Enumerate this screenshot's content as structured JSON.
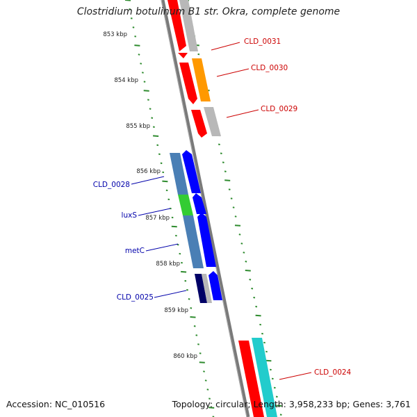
{
  "title": "Clostridium botulinum B1 str. Okra, complete genome",
  "footer": {
    "accession": "Accession: NC_010516",
    "info": "Topology: circular; Length: 3,958,233 bp; Genes: 3,761"
  },
  "ruler": [
    {
      "label": "853 kbp"
    },
    {
      "label": "854 kbp"
    },
    {
      "label": "855 kbp"
    },
    {
      "label": "856 kbp"
    },
    {
      "label": "857 kbp"
    },
    {
      "label": "858 kbp"
    },
    {
      "label": "859 kbp"
    },
    {
      "label": "860 kbp"
    }
  ],
  "gene_labels": [
    {
      "text": "CLD_0031",
      "color": "#cc0000"
    },
    {
      "text": "CLD_0030",
      "color": "#cc0000"
    },
    {
      "text": "CLD_0029",
      "color": "#cc0000"
    },
    {
      "text": "CLD_0028",
      "color": "#0000aa"
    },
    {
      "text": "luxS",
      "color": "#0000aa"
    },
    {
      "text": "metC",
      "color": "#0000aa"
    },
    {
      "text": "CLD_0025",
      "color": "#0000aa"
    },
    {
      "text": "CLD_0024",
      "color": "#cc0000"
    }
  ],
  "colors": {
    "backbone": "#7a7a7a",
    "dots": "#2e8b2e",
    "red": "#ff0000",
    "orange": "#ff9900",
    "grey": "#b8b8b8",
    "blue": "#0000ff",
    "steelblue": "#4a7fb5",
    "green": "#33cc33",
    "navy": "#000066",
    "cyan": "#22cccc"
  }
}
